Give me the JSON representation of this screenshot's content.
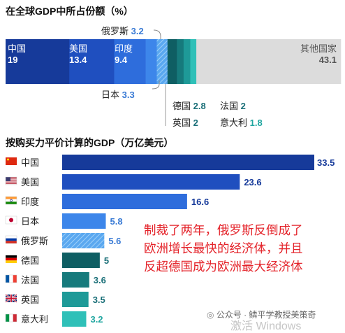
{
  "share_chart": {
    "title": "在全球GDP中所占份额（%）",
    "segments": [
      {
        "name": "中国",
        "value": 19,
        "value_label": "19",
        "color": "#163a9a"
      },
      {
        "name": "美国",
        "value": 13.4,
        "value_label": "13.4",
        "color": "#1f4fbf"
      },
      {
        "name": "印度",
        "value": 9.4,
        "value_label": "9.4",
        "color": "#2e6ddc"
      },
      {
        "name": "日本",
        "value": 3.3,
        "value_label": "3.3",
        "color": "#3d86ea"
      },
      {
        "name": "俄罗斯",
        "value": 3.2,
        "value_label": "3.2",
        "color": "#5aa8f0",
        "hatched": true
      },
      {
        "name": "德国",
        "value": 2.8,
        "value_label": "2.8",
        "color": "#0f5e63"
      },
      {
        "name": "法国",
        "value": 2,
        "value_label": "2",
        "color": "#167a7c"
      },
      {
        "name": "英国",
        "value": 2,
        "value_label": "2",
        "color": "#1e9a98"
      },
      {
        "name": "意大利",
        "value": 1.8,
        "value_label": "1.8",
        "color": "#2fc0b8"
      },
      {
        "name": "其他国家",
        "value": 43.1,
        "value_label": "43.1",
        "color": "#dcdcdc"
      }
    ]
  },
  "ppp_chart": {
    "title": "按购买力平价计算的GDP（万亿美元）",
    "xlim": [
      0,
      33.5
    ]
  },
  "chart_data": [
    {
      "type": "bar",
      "orientation": "stacked-horizontal",
      "title": "在全球GDP中所占份额（%）",
      "categories": [
        "中国",
        "美国",
        "印度",
        "日本",
        "俄罗斯",
        "德国",
        "法国",
        "英国",
        "意大利",
        "其他国家"
      ],
      "values": [
        19,
        13.4,
        9.4,
        3.3,
        3.2,
        2.8,
        2,
        2,
        1.8,
        43.1
      ]
    },
    {
      "type": "bar",
      "orientation": "horizontal",
      "title": "按购买力平价计算的GDP（万亿美元）",
      "categories": [
        "中国",
        "美国",
        "印度",
        "日本",
        "俄罗斯",
        "德国",
        "法国",
        "英国",
        "意大利"
      ],
      "values": [
        33.5,
        23.6,
        16.6,
        5.8,
        5.6,
        5,
        3.6,
        3.5,
        3.2
      ],
      "value_labels": [
        "33.5",
        "23.6",
        "16.6",
        "5.8",
        "5.6",
        "5",
        "3.6",
        "3.5",
        "3.2"
      ],
      "colors": [
        "#163a9a",
        "#1f4fbf",
        "#2e6ddc",
        "#3d86ea",
        "#5aa8f0",
        "#0f5e63",
        "#167a7c",
        "#1e9a98",
        "#2fc0b8"
      ],
      "hatched": [
        false,
        false,
        false,
        false,
        true,
        false,
        false,
        false,
        false
      ],
      "flags": [
        "china-flag-icon",
        "usa-flag-icon",
        "india-flag-icon",
        "japan-flag-icon",
        "russia-flag-icon",
        "germany-flag-icon",
        "france-flag-icon",
        "uk-flag-icon",
        "italy-flag-icon"
      ]
    }
  ],
  "annotation": {
    "lines": [
      "制裁了两年，俄罗斯反倒成了",
      "欧洲增长最快的经济体，并且",
      "反超德国成为欧洲最大经济体"
    ]
  },
  "watermark": {
    "account": "公众号 · 鳞平学教授美策奇",
    "activate": "激活 Windows"
  }
}
